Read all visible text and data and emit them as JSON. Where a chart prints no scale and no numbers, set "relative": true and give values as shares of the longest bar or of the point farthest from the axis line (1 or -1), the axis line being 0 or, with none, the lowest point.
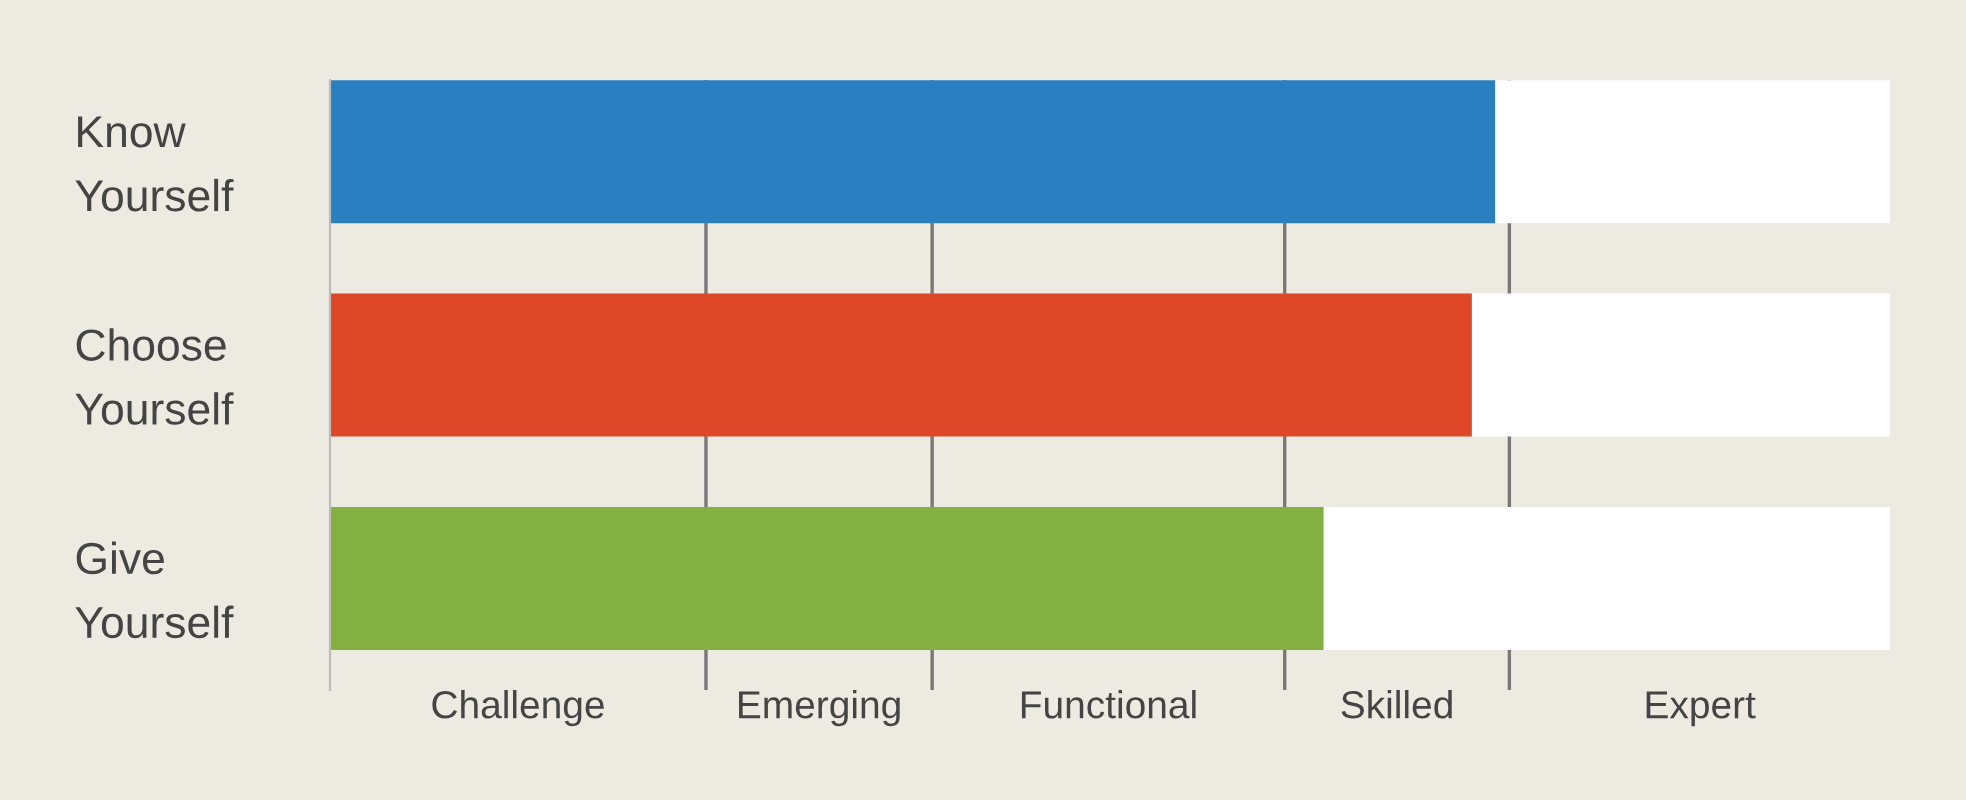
{
  "chart_data": {
    "type": "bar",
    "orientation": "horizontal",
    "stacked": true,
    "relative": true,
    "tick_labels": "y",
    "categories": [
      "Know\nYourself",
      "Choose\nYourself",
      "Give\nYourself"
    ],
    "series": [
      {
        "colors": [
          "#2a7fc0",
          "#de4727",
          "#83b040"
        ],
        "values": [
          0.747,
          0.732,
          0.637
        ]
      },
      {
        "color": "#ffffff",
        "values": [
          0.253,
          0.268,
          0.363
        ]
      }
    ],
    "ref_lines": [
      {
        "axis": "x",
        "value": 0.241,
        "color": "#777777"
      },
      {
        "axis": "x",
        "value": 0.386,
        "color": "#777777"
      },
      {
        "axis": "x",
        "value": 0.612,
        "color": "#777777"
      },
      {
        "axis": "x",
        "value": 0.756,
        "color": "#777777"
      }
    ],
    "annotations": [
      "Challenge",
      "Emerging",
      "Functional",
      "Skilled",
      "Expert"
    ]
  }
}
